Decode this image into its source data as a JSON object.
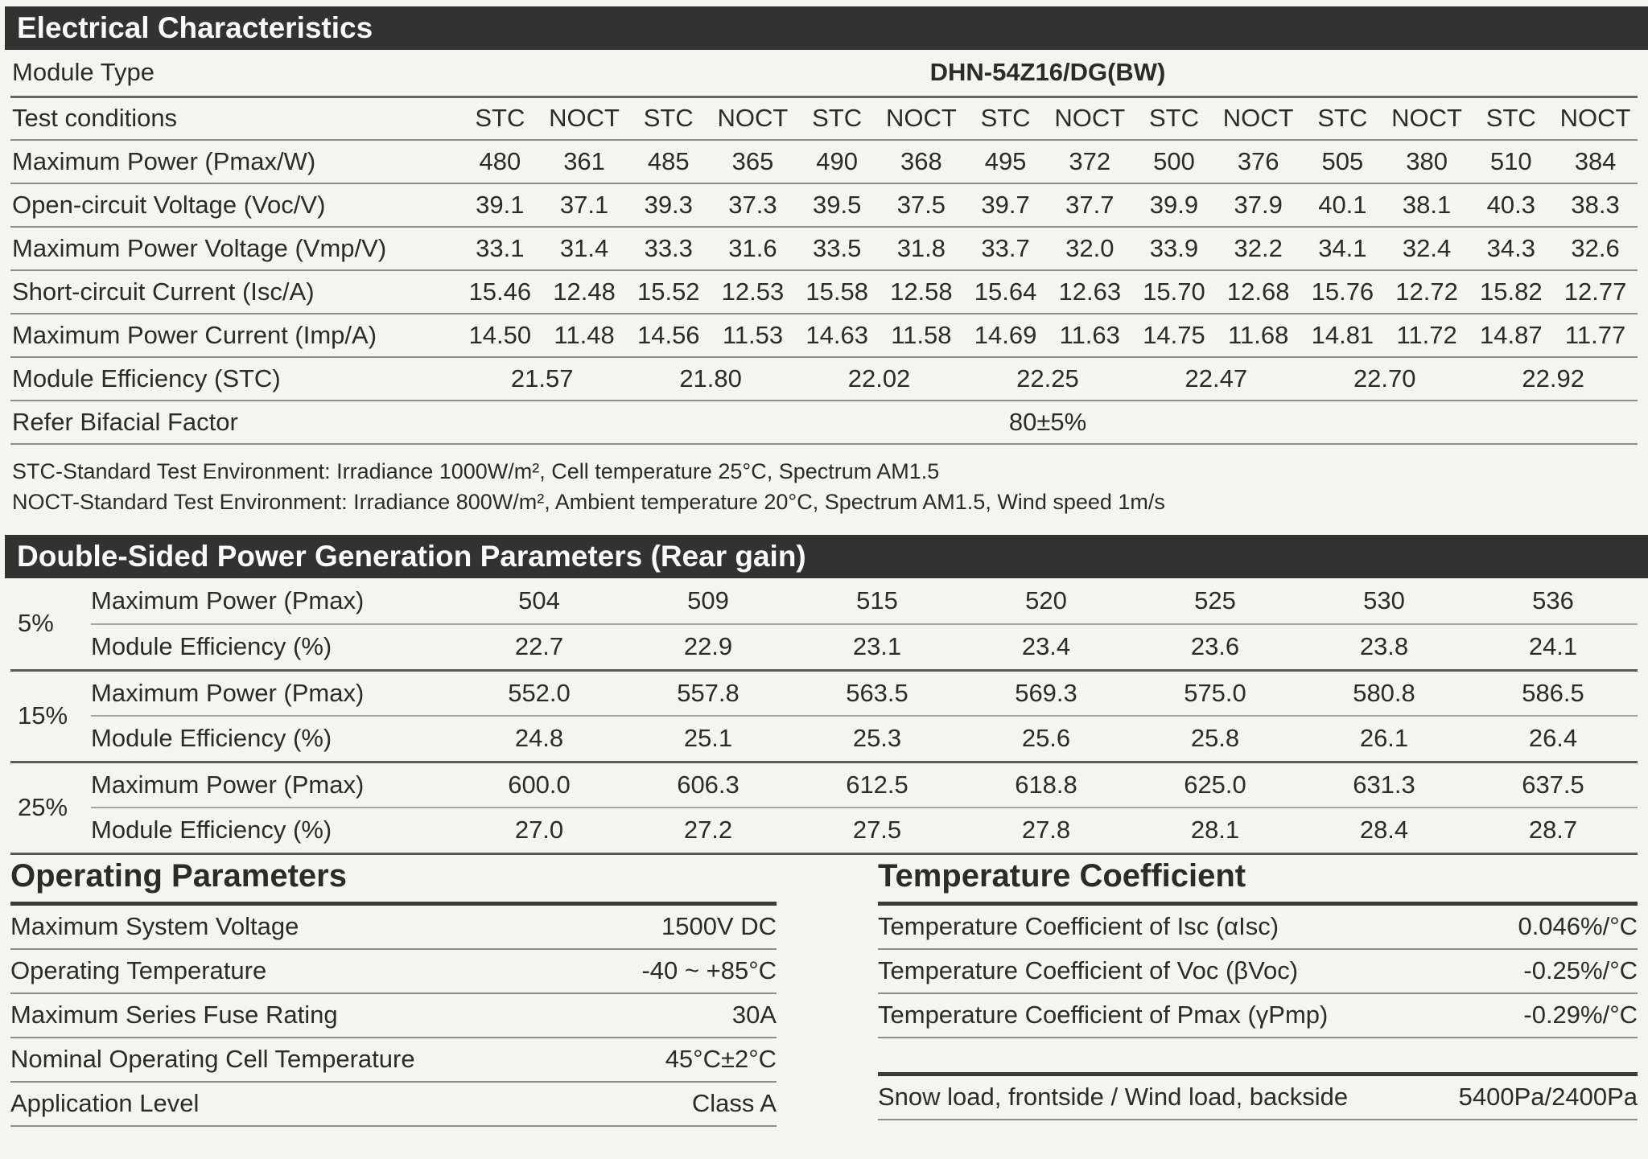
{
  "electrical": {
    "title": "Electrical Characteristics",
    "module_type_label": "Module Type",
    "module_type_value": "DHN-54Z16/DG(BW)",
    "test_conditions_label": "Test conditions",
    "test_conditions": [
      "STC",
      "NOCT",
      "STC",
      "NOCT",
      "STC",
      "NOCT",
      "STC",
      "NOCT",
      "STC",
      "NOCT",
      "STC",
      "NOCT",
      "STC",
      "NOCT"
    ],
    "rows": [
      {
        "label": "Maximum Power (Pmax/W)",
        "values": [
          "480",
          "361",
          "485",
          "365",
          "490",
          "368",
          "495",
          "372",
          "500",
          "376",
          "505",
          "380",
          "510",
          "384"
        ]
      },
      {
        "label": "Open-circuit Voltage (Voc/V)",
        "values": [
          "39.1",
          "37.1",
          "39.3",
          "37.3",
          "39.5",
          "37.5",
          "39.7",
          "37.7",
          "39.9",
          "37.9",
          "40.1",
          "38.1",
          "40.3",
          "38.3"
        ]
      },
      {
        "label": "Maximum Power Voltage (Vmp/V)",
        "values": [
          "33.1",
          "31.4",
          "33.3",
          "31.6",
          "33.5",
          "31.8",
          "33.7",
          "32.0",
          "33.9",
          "32.2",
          "34.1",
          "32.4",
          "34.3",
          "32.6"
        ]
      },
      {
        "label": "Short-circuit Current (Isc/A)",
        "values": [
          "15.46",
          "12.48",
          "15.52",
          "12.53",
          "15.58",
          "12.58",
          "15.64",
          "12.63",
          "15.70",
          "12.68",
          "15.76",
          "12.72",
          "15.82",
          "12.77"
        ]
      },
      {
        "label": "Maximum Power Current (Imp/A)",
        "values": [
          "14.50",
          "11.48",
          "14.56",
          "11.53",
          "14.63",
          "11.58",
          "14.69",
          "11.63",
          "14.75",
          "11.68",
          "14.81",
          "11.72",
          "14.87",
          "11.77"
        ]
      }
    ],
    "efficiency": {
      "label": "Module Efficiency (STC)",
      "values": [
        "21.57",
        "21.80",
        "22.02",
        "22.25",
        "22.47",
        "22.70",
        "22.92"
      ]
    },
    "bifacial": {
      "label": "Refer Bifacial Factor",
      "value": "80±5%"
    },
    "footnotes": [
      "STC-Standard Test Environment: Irradiance 1000W/m², Cell temperature 25°C, Spectrum AM1.5",
      "NOCT-Standard Test Environment: Irradiance 800W/m², Ambient temperature 20°C, Spectrum AM1.5, Wind speed 1m/s"
    ]
  },
  "rear_gain": {
    "title": "Double-Sided Power Generation Parameters (Rear gain)",
    "groups": [
      {
        "gain": "5%",
        "pmax_label": "Maximum Power (Pmax)",
        "pmax": [
          "504",
          "509",
          "515",
          "520",
          "525",
          "530",
          "536"
        ],
        "eff_label": "Module Efficiency (%)",
        "eff": [
          "22.7",
          "22.9",
          "23.1",
          "23.4",
          "23.6",
          "23.8",
          "24.1"
        ]
      },
      {
        "gain": "15%",
        "pmax_label": "Maximum Power (Pmax)",
        "pmax": [
          "552.0",
          "557.8",
          "563.5",
          "569.3",
          "575.0",
          "580.8",
          "586.5"
        ],
        "eff_label": "Module Efficiency (%)",
        "eff": [
          "24.8",
          "25.1",
          "25.3",
          "25.6",
          "25.8",
          "26.1",
          "26.4"
        ]
      },
      {
        "gain": "25%",
        "pmax_label": "Maximum Power (Pmax)",
        "pmax": [
          "600.0",
          "606.3",
          "612.5",
          "618.8",
          "625.0",
          "631.3",
          "637.5"
        ],
        "eff_label": "Module Efficiency (%)",
        "eff": [
          "27.0",
          "27.2",
          "27.5",
          "27.8",
          "28.1",
          "28.4",
          "28.7"
        ]
      }
    ]
  },
  "operating": {
    "title": "Operating Parameters",
    "rows": [
      {
        "label": "Maximum System Voltage",
        "value": "1500V DC"
      },
      {
        "label": "Operating Temperature",
        "value": "-40 ~ +85°C"
      },
      {
        "label": "Maximum Series Fuse Rating",
        "value": "30A"
      },
      {
        "label": "Nominal Operating Cell Temperature",
        "value": "45°C±2°C"
      },
      {
        "label": "Application Level",
        "value": "Class A"
      }
    ]
  },
  "temperature": {
    "title": "Temperature Coefficient",
    "rows": [
      {
        "label": "Temperature Coefficient of Isc (αIsc)",
        "value": "0.046%/°C"
      },
      {
        "label": "Temperature Coefficient of Voc (βVoc)",
        "value": "-0.25%/°C"
      },
      {
        "label": "Temperature Coefficient of Pmax (γPmp)",
        "value": "-0.29%/°C"
      }
    ],
    "load_row": {
      "label": "Snow load, frontside / Wind load, backside",
      "value": "5400Pa/2400Pa"
    }
  },
  "colors": {
    "bar_bg": "#343230",
    "page_bg": "#f5f4f1",
    "text": "#2c2b28"
  }
}
